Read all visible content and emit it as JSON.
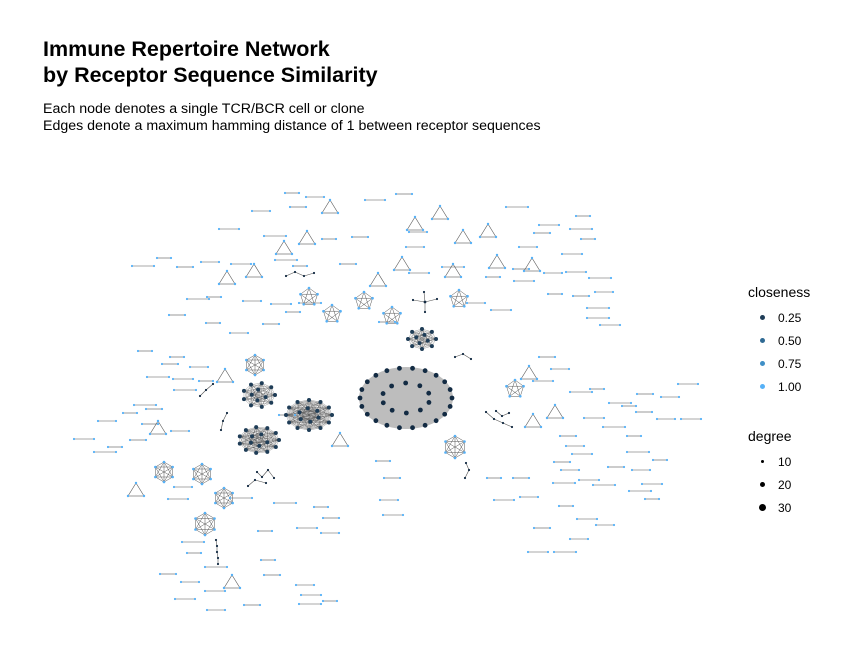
{
  "title": {
    "line1": "Immune Repertoire Network",
    "line2": "by Receptor Sequence Similarity"
  },
  "subtitle": {
    "line1": "Each node denotes a single TCR/BCR cell or clone",
    "line2": "Edges denote a maximum hamming distance of 1 between receptor sequences"
  },
  "legend": {
    "closeness": {
      "title": "closeness",
      "items": [
        {
          "label": "0.25",
          "color": "#1f3d57"
        },
        {
          "label": "0.50",
          "color": "#2f6a94"
        },
        {
          "label": "0.75",
          "color": "#3f8fc6"
        },
        {
          "label": "1.00",
          "color": "#56b1f7"
        }
      ]
    },
    "degree": {
      "title": "degree",
      "items": [
        {
          "label": "10"
        },
        {
          "label": "20"
        },
        {
          "label": "30"
        }
      ]
    }
  },
  "colors": {
    "node_high_closeness": "#56b1f7",
    "node_low_closeness": "#132b43",
    "edge": "#555555",
    "dense_cluster_fill": "#bdbdbd"
  }
}
